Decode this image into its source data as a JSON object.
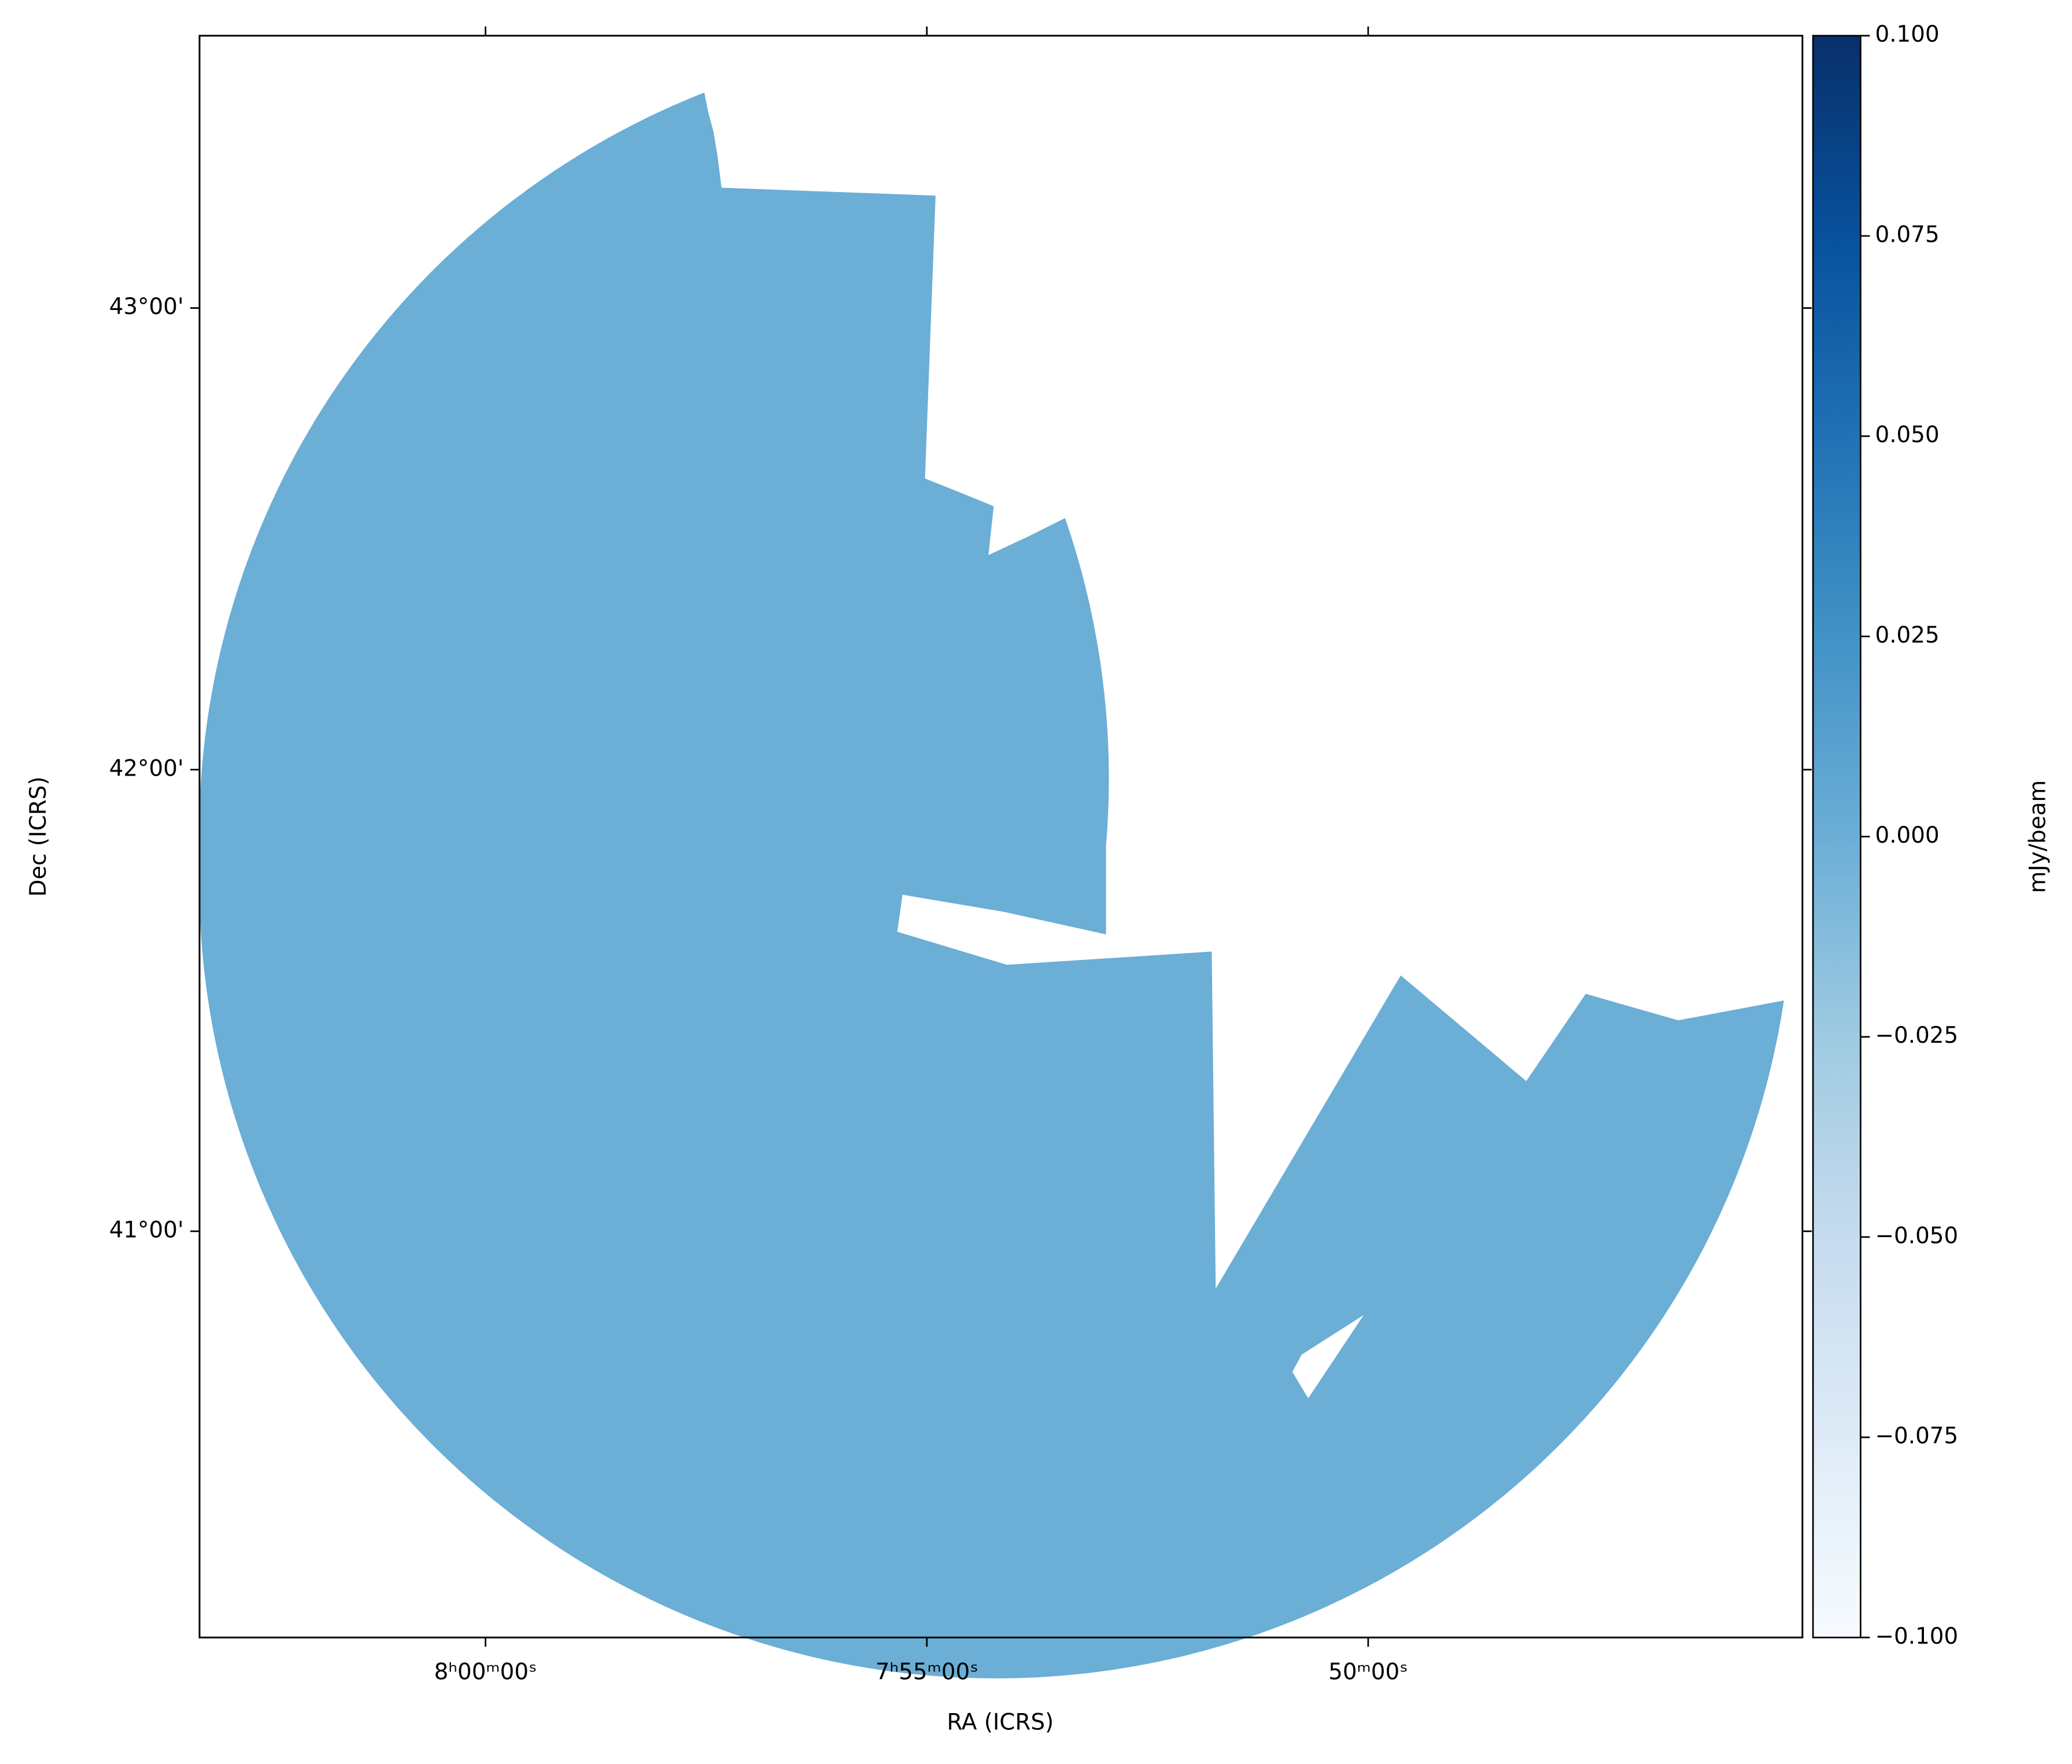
{
  "chart_data": {
    "type": "image",
    "xlabel": "RA (ICRS)",
    "ylabel": "Dec (ICRS)",
    "xlim": [
      120.81,
      116.27
    ],
    "ylim": [
      40.12,
      43.59
    ],
    "xticks": [
      {
        "value": 120,
        "label": "8ʰ00ᵐ00ˢ"
      },
      {
        "value": 118.75,
        "label": "7ʰ55ᵐ00ˢ"
      },
      {
        "value": 117.5,
        "label": "50ᵐ00ˢ"
      }
    ],
    "yticks": [
      {
        "value": 41,
        "label": "41°00'"
      },
      {
        "value": 42,
        "label": "42°00'"
      },
      {
        "value": 43,
        "label": "43°00'"
      }
    ],
    "colorbar": {
      "label": "mJy/beam",
      "colormap": "Blues",
      "clim": [
        -0.1,
        0.1
      ],
      "ticks": [
        {
          "value": -0.1,
          "label": "−0.100"
        },
        {
          "value": -0.075,
          "label": "−0.075"
        },
        {
          "value": -0.05,
          "label": "−0.050"
        },
        {
          "value": -0.025,
          "label": "−0.025"
        },
        {
          "value": 0,
          "label": "0.000"
        },
        {
          "value": 0.025,
          "label": "0.025"
        },
        {
          "value": 0.05,
          "label": "0.050"
        },
        {
          "value": 0.075,
          "label": "0.075"
        },
        {
          "value": 0.1,
          "label": "0.100"
        }
      ]
    }
  }
}
